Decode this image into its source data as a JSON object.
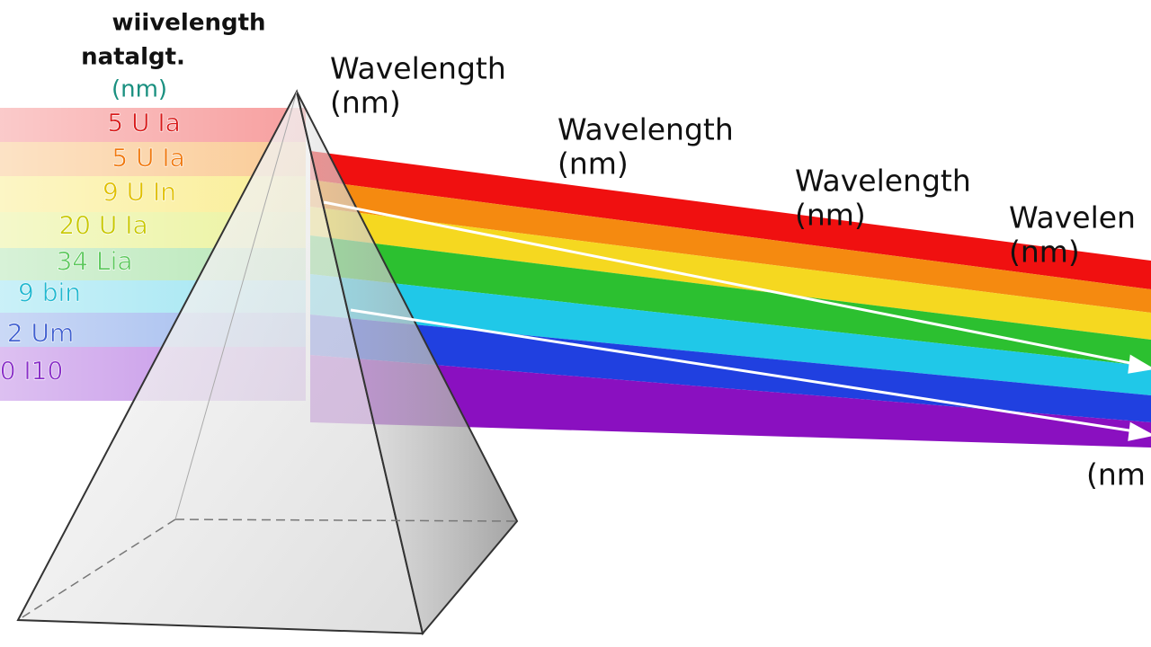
{
  "left_labels": {
    "title": [
      "wiivelength",
      "natalgt.",
      "(nm)"
    ],
    "items": [
      {
        "text": "5 U Ia",
        "color": "#d81a1a"
      },
      {
        "text": "5 U Ia",
        "color": "#f07a10"
      },
      {
        "text": "9 U In",
        "color": "#e0c000"
      },
      {
        "text": "20 U Ia",
        "color": "#c8c800"
      },
      {
        "text": "34 Lia",
        "color": "#5cc85c"
      },
      {
        "text": "9 bin",
        "color": "#20b8d0"
      },
      {
        "text": "2 Um",
        "color": "#4060d0"
      },
      {
        "text": "0 I10",
        "color": "#8a30c8"
      }
    ]
  },
  "right_labels": [
    {
      "line1": "Wavelength",
      "line2": "(nm)"
    },
    {
      "line1": "Wavelength",
      "line2": "(nm)"
    },
    {
      "line1": "Wavelength",
      "line2": "(nm)"
    },
    {
      "line1": "Wavelen",
      "line2": "(nm)"
    }
  ],
  "bottom_label": "(nm"
}
